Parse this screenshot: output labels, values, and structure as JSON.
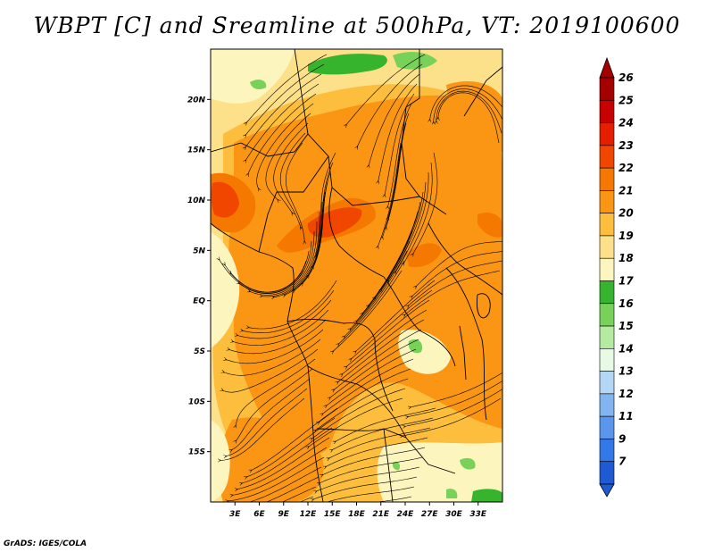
{
  "title": "WBPT [C] and Sreamline at 500hPa, VT: 2019100600",
  "footer": "GrADS: IGES/COLA",
  "map": {
    "lon_range": [
      0,
      36
    ],
    "lat_range": [
      -20,
      25
    ],
    "lat_ticks": [
      {
        "value": 20,
        "label": "20N"
      },
      {
        "value": 15,
        "label": "15N"
      },
      {
        "value": 10,
        "label": "10N"
      },
      {
        "value": 5,
        "label": "5N"
      },
      {
        "value": 0,
        "label": "EQ"
      },
      {
        "value": -5,
        "label": "5S"
      },
      {
        "value": -10,
        "label": "10S"
      },
      {
        "value": -15,
        "label": "15S"
      }
    ],
    "lon_ticks": [
      {
        "value": 3,
        "label": "3E"
      },
      {
        "value": 6,
        "label": "6E"
      },
      {
        "value": 9,
        "label": "9E"
      },
      {
        "value": 12,
        "label": "12E"
      },
      {
        "value": 15,
        "label": "15E"
      },
      {
        "value": 18,
        "label": "18E"
      },
      {
        "value": 21,
        "label": "21E"
      },
      {
        "value": 24,
        "label": "24E"
      },
      {
        "value": 27,
        "label": "27E"
      },
      {
        "value": 30,
        "label": "30E"
      },
      {
        "value": 33,
        "label": "33E"
      }
    ]
  },
  "colorbar": {
    "levels": [
      {
        "label": "26",
        "color": "#a50000"
      },
      {
        "label": "25",
        "color": "#c80000"
      },
      {
        "label": "24",
        "color": "#e61e00"
      },
      {
        "label": "23",
        "color": "#f04600"
      },
      {
        "label": "22",
        "color": "#f57800"
      },
      {
        "label": "21",
        "color": "#fa9614"
      },
      {
        "label": "20",
        "color": "#fcbe3c"
      },
      {
        "label": "19",
        "color": "#fde08a"
      },
      {
        "label": "18",
        "color": "#fdf5be"
      },
      {
        "label": "17",
        "color": "#36b42d"
      },
      {
        "label": "16",
        "color": "#78d25a"
      },
      {
        "label": "15",
        "color": "#b4eba0"
      },
      {
        "label": "14",
        "color": "#e6fae6"
      },
      {
        "label": "13",
        "color": "#b4d7f5"
      },
      {
        "label": "12",
        "color": "#82b4f0"
      },
      {
        "label": "11",
        "color": "#5a96eb"
      },
      {
        "label": "9",
        "color": "#3278e6"
      },
      {
        "label": "7",
        "color": "#1e5ad2"
      }
    ],
    "bottom_color": "#1e5ad2",
    "top_color": "#a50000"
  },
  "fields": {
    "base_color": "#fde08a",
    "regions": [
      {
        "name": "orange",
        "color": "#fa9614"
      },
      {
        "name": "light-orange",
        "color": "#fcbe3c"
      },
      {
        "name": "dark-orange",
        "color": "#f57800"
      },
      {
        "name": "red-orange",
        "color": "#f04600"
      },
      {
        "name": "pale",
        "color": "#fdf5be"
      },
      {
        "name": "green",
        "color": "#36b42d"
      },
      {
        "name": "light-green",
        "color": "#78d25a"
      }
    ]
  }
}
